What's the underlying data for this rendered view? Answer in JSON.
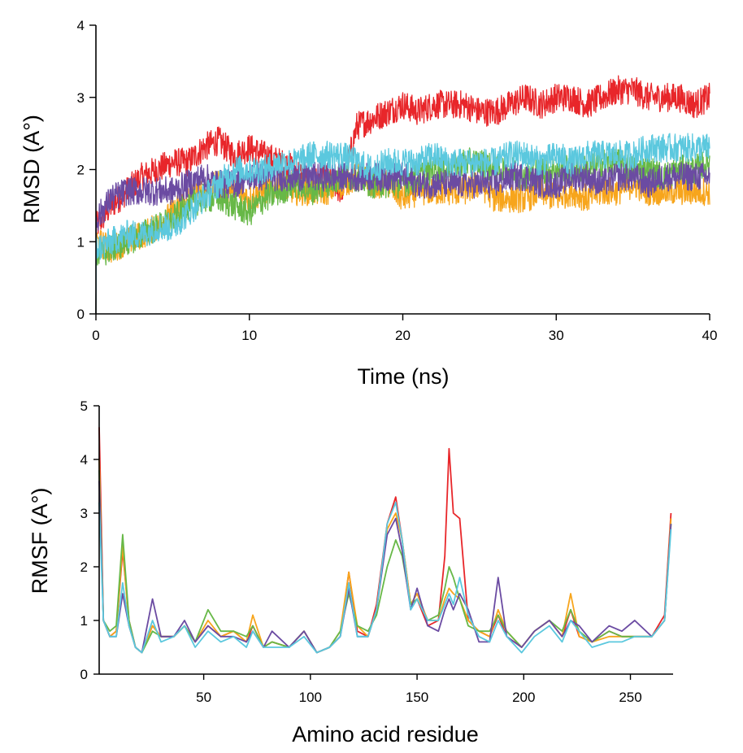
{
  "chart_data": [
    {
      "type": "line",
      "title": "",
      "xlabel": "Time (ns)",
      "ylabel": "RMSD (A°)",
      "xlim": [
        0,
        40
      ],
      "ylim": [
        0,
        4
      ],
      "xticks": [
        0,
        10,
        20,
        30,
        40
      ],
      "yticks": [
        0,
        1,
        2,
        3,
        4
      ],
      "grid": false,
      "x": [
        0,
        1,
        2,
        3,
        4,
        5,
        6,
        7,
        8,
        9,
        10,
        11,
        12,
        13,
        14,
        15,
        16,
        17,
        18,
        19,
        20,
        21,
        22,
        23,
        24,
        25,
        26,
        27,
        28,
        29,
        30,
        31,
        32,
        33,
        34,
        35,
        36,
        37,
        38,
        39,
        40
      ],
      "noise": 0.2,
      "series": [
        {
          "name": "red",
          "color": "#e8262a",
          "values": [
            1.2,
            1.5,
            1.7,
            1.9,
            2.0,
            2.1,
            2.1,
            2.3,
            2.4,
            2.2,
            2.3,
            2.2,
            2.1,
            2.0,
            1.8,
            1.9,
            1.7,
            2.6,
            2.7,
            2.8,
            2.9,
            2.8,
            2.9,
            2.9,
            2.9,
            2.8,
            2.8,
            2.9,
            3.0,
            2.9,
            3.0,
            3.0,
            2.9,
            3.0,
            3.1,
            3.1,
            3.0,
            3.0,
            3.0,
            2.9,
            3.0
          ]
        },
        {
          "name": "orange",
          "color": "#f7a51c",
          "values": [
            1.0,
            0.9,
            1.0,
            1.1,
            1.2,
            1.4,
            1.6,
            1.7,
            1.8,
            1.7,
            1.6,
            1.7,
            1.8,
            1.7,
            1.7,
            1.7,
            1.8,
            1.9,
            1.8,
            1.8,
            1.6,
            1.7,
            1.7,
            1.7,
            1.7,
            1.8,
            1.6,
            1.6,
            1.6,
            1.7,
            1.6,
            1.7,
            1.6,
            1.7,
            1.7,
            1.8,
            1.7,
            1.7,
            1.7,
            1.7,
            1.7
          ]
        },
        {
          "name": "green",
          "color": "#67b847",
          "values": [
            0.8,
            0.9,
            1.0,
            1.1,
            1.2,
            1.3,
            1.5,
            1.6,
            1.6,
            1.5,
            1.4,
            1.6,
            1.7,
            1.8,
            1.7,
            1.8,
            1.9,
            1.9,
            1.8,
            1.8,
            1.8,
            1.9,
            2.0,
            2.0,
            2.1,
            2.1,
            2.0,
            2.0,
            1.9,
            2.0,
            2.0,
            2.0,
            2.0,
            2.1,
            2.1,
            2.0,
            2.0,
            1.9,
            2.0,
            2.0,
            2.1
          ]
        },
        {
          "name": "purple",
          "color": "#6b4ba2",
          "values": [
            1.3,
            1.6,
            1.7,
            1.7,
            1.7,
            1.7,
            1.8,
            1.9,
            1.8,
            1.8,
            1.9,
            1.9,
            1.9,
            1.9,
            1.9,
            1.9,
            1.9,
            1.9,
            1.9,
            1.9,
            1.9,
            1.8,
            1.8,
            1.8,
            1.8,
            1.8,
            1.8,
            1.9,
            1.9,
            1.8,
            1.8,
            1.9,
            1.9,
            1.8,
            1.9,
            1.9,
            1.8,
            1.9,
            1.9,
            1.9,
            1.9
          ]
        },
        {
          "name": "cyan",
          "color": "#5bc8de",
          "values": [
            0.9,
            1.0,
            1.1,
            1.1,
            1.2,
            1.2,
            1.4,
            1.6,
            1.8,
            2.0,
            2.0,
            2.0,
            2.1,
            2.1,
            2.2,
            2.2,
            2.2,
            2.1,
            2.0,
            2.1,
            2.1,
            2.1,
            2.2,
            2.1,
            2.1,
            2.1,
            2.1,
            2.2,
            2.2,
            2.1,
            2.2,
            2.1,
            2.2,
            2.2,
            2.2,
            2.2,
            2.3,
            2.3,
            2.3,
            2.3,
            2.3
          ]
        }
      ]
    },
    {
      "type": "line",
      "title": "",
      "xlabel": "Amino acid residue",
      "ylabel": "RMSF (A°)",
      "xlim": [
        1,
        270
      ],
      "ylim": [
        0,
        5
      ],
      "xticks": [
        50,
        100,
        150,
        200,
        250
      ],
      "yticks": [
        0,
        1,
        2,
        3,
        4,
        5
      ],
      "grid": false,
      "x": [
        1,
        3,
        6,
        9,
        12,
        15,
        18,
        21,
        26,
        30,
        36,
        41,
        46,
        52,
        58,
        64,
        70,
        73,
        78,
        82,
        90,
        97,
        103,
        109,
        114,
        118,
        122,
        127,
        131,
        136,
        140,
        143,
        147,
        150,
        155,
        160,
        163,
        165,
        167,
        170,
        174,
        179,
        184,
        188,
        192,
        199,
        205,
        212,
        218,
        222,
        226,
        232,
        240,
        246,
        252,
        260,
        266,
        269
      ],
      "series": [
        {
          "name": "red",
          "color": "#e8262a",
          "values": [
            4.6,
            1.0,
            0.7,
            0.8,
            2.3,
            1.0,
            0.5,
            0.4,
            0.9,
            0.7,
            0.7,
            0.9,
            0.6,
            0.9,
            0.7,
            0.8,
            0.6,
            0.9,
            0.5,
            0.6,
            0.5,
            0.8,
            0.4,
            0.5,
            0.7,
            1.9,
            0.8,
            0.7,
            1.3,
            2.8,
            3.3,
            2.5,
            1.3,
            1.4,
            0.9,
            1.0,
            2.2,
            4.2,
            3.0,
            2.9,
            1.0,
            0.8,
            0.7,
            1.1,
            0.7,
            0.5,
            0.8,
            1.0,
            0.7,
            1.2,
            0.7,
            0.6,
            0.8,
            0.7,
            0.7,
            0.7,
            1.1,
            3.0
          ]
        },
        {
          "name": "orange",
          "color": "#f7a51c",
          "values": [
            4.0,
            1.0,
            0.7,
            0.8,
            2.4,
            0.9,
            0.5,
            0.4,
            0.9,
            0.7,
            0.7,
            0.9,
            0.6,
            1.0,
            0.7,
            0.8,
            0.6,
            1.1,
            0.5,
            0.6,
            0.5,
            0.8,
            0.4,
            0.5,
            0.8,
            1.9,
            0.9,
            0.7,
            1.2,
            2.7,
            3.0,
            2.5,
            1.3,
            1.5,
            1.0,
            1.0,
            1.4,
            1.6,
            1.5,
            1.4,
            1.0,
            0.8,
            0.7,
            1.2,
            0.8,
            0.5,
            0.8,
            1.0,
            0.7,
            1.5,
            0.7,
            0.6,
            0.7,
            0.7,
            0.7,
            0.7,
            1.0,
            2.9
          ]
        },
        {
          "name": "green",
          "color": "#67b847",
          "values": [
            3.8,
            1.0,
            0.8,
            0.9,
            2.6,
            1.0,
            0.5,
            0.4,
            0.8,
            0.7,
            0.7,
            0.9,
            0.6,
            1.2,
            0.8,
            0.8,
            0.7,
            0.9,
            0.5,
            0.6,
            0.5,
            0.8,
            0.4,
            0.5,
            0.8,
            1.5,
            0.9,
            0.8,
            1.1,
            2.0,
            2.5,
            2.2,
            1.3,
            1.4,
            1.0,
            1.1,
            1.6,
            2.0,
            1.8,
            1.4,
            0.9,
            0.8,
            0.8,
            1.1,
            0.8,
            0.5,
            0.8,
            1.0,
            0.8,
            1.2,
            0.8,
            0.6,
            0.8,
            0.7,
            0.7,
            0.7,
            1.0,
            2.8
          ]
        },
        {
          "name": "purple",
          "color": "#6b4ba2",
          "values": [
            3.6,
            1.0,
            0.7,
            0.7,
            1.5,
            0.9,
            0.5,
            0.4,
            1.4,
            0.7,
            0.7,
            1.0,
            0.6,
            0.9,
            0.7,
            0.7,
            0.6,
            0.8,
            0.5,
            0.8,
            0.5,
            0.8,
            0.4,
            0.5,
            0.7,
            1.6,
            0.7,
            0.7,
            1.2,
            2.6,
            2.9,
            2.3,
            1.2,
            1.6,
            0.9,
            0.8,
            1.2,
            1.4,
            1.2,
            1.5,
            1.2,
            0.6,
            0.6,
            1.8,
            0.7,
            0.5,
            0.8,
            1.0,
            0.7,
            1.0,
            0.9,
            0.6,
            0.9,
            0.8,
            1.0,
            0.7,
            1.0,
            2.8
          ]
        },
        {
          "name": "cyan",
          "color": "#5bc8de",
          "values": [
            3.2,
            1.0,
            0.7,
            0.7,
            1.7,
            0.9,
            0.5,
            0.4,
            1.0,
            0.6,
            0.7,
            0.9,
            0.5,
            0.8,
            0.6,
            0.7,
            0.5,
            0.8,
            0.5,
            0.5,
            0.5,
            0.7,
            0.4,
            0.5,
            0.7,
            1.7,
            0.7,
            0.7,
            1.2,
            2.8,
            3.2,
            2.5,
            1.2,
            1.4,
            1.0,
            1.0,
            1.3,
            1.5,
            1.3,
            1.8,
            1.1,
            0.7,
            0.6,
            1.0,
            0.7,
            0.4,
            0.7,
            0.9,
            0.6,
            1.0,
            0.8,
            0.5,
            0.6,
            0.6,
            0.7,
            0.7,
            1.0,
            2.7
          ]
        }
      ]
    }
  ]
}
